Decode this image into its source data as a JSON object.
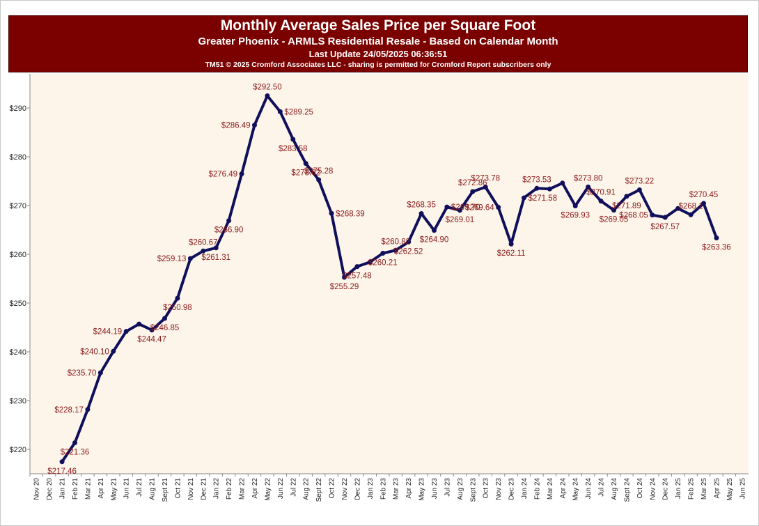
{
  "header": {
    "title": "Monthly Average Sales Price per Square Foot",
    "subtitle": "Greater Phoenix - ARMLS Residential Resale - Based on Calendar Month",
    "update": "Last Update 24/05/2025 06:36:51",
    "copyright": "TM51 © 2025 Cromford Associates LLC - sharing is permitted for Cromford Report subscribers only"
  },
  "colors": {
    "header_bg": "#7b0000",
    "plot_bg": "#fdf5ea",
    "line": "#0f0f5c",
    "label": "#8b1a1a"
  },
  "chart_data": {
    "type": "line",
    "title": "Monthly Average Sales Price per Square Foot",
    "xlabel": "",
    "ylabel": "",
    "ylim": [
      215,
      297
    ],
    "yticks": [
      220,
      230,
      240,
      250,
      260,
      270,
      280,
      290
    ],
    "ytick_labels": [
      "$220",
      "$230",
      "$240",
      "$250",
      "$260",
      "$270",
      "$280",
      "$290"
    ],
    "grid": false,
    "categories": [
      "Nov 20",
      "Dec 20",
      "Jan 21",
      "Feb 21",
      "Mar 21",
      "Apr 21",
      "May 21",
      "Jun 21",
      "Jul 21",
      "Aug 21",
      "Sept 21",
      "Oct 21",
      "Nov 21",
      "Dec 21",
      "Jan 22",
      "Feb 22",
      "Mar 22",
      "Apr 22",
      "May 22",
      "Jun 22",
      "Jul 22",
      "Aug 22",
      "Sept 22",
      "Oct 22",
      "Nov 22",
      "Dec 22",
      "Jan 23",
      "Feb 23",
      "Mar 23",
      "Apr 23",
      "May 23",
      "Jun 23",
      "Jul 23",
      "Aug 23",
      "Sept 23",
      "Oct 23",
      "Nov 23",
      "Dec 23",
      "Jan 24",
      "Feb 24",
      "Mar 24",
      "Apr 24",
      "May 24",
      "Jun 24",
      "Jul 24",
      "Aug 24",
      "Sept 24",
      "Oct 24",
      "Nov 24",
      "Dec 24",
      "Jan 25",
      "Feb 25",
      "Mar 25",
      "Apr 25",
      "May 25",
      "Jun 25"
    ],
    "values": [
      null,
      null,
      217.46,
      221.36,
      228.17,
      235.7,
      240.1,
      244.19,
      245.7,
      244.47,
      246.85,
      250.98,
      259.13,
      260.67,
      261.31,
      266.9,
      276.49,
      286.49,
      292.5,
      289.25,
      283.58,
      278.62,
      275.28,
      268.39,
      255.29,
      257.48,
      258.4,
      260.21,
      260.82,
      262.52,
      268.35,
      264.9,
      269.7,
      269.01,
      272.86,
      273.78,
      269.64,
      262.11,
      271.58,
      273.53,
      273.4,
      274.6,
      269.93,
      273.8,
      270.91,
      269.05,
      271.89,
      273.22,
      268.05,
      267.57,
      269.4,
      268.1,
      270.45,
      263.36,
      null,
      null
    ],
    "labels": [
      {
        "i": 2,
        "text": "$217.46",
        "pos": "below"
      },
      {
        "i": 3,
        "text": "$221.36",
        "pos": "below"
      },
      {
        "i": 4,
        "text": "$228.17",
        "pos": "left"
      },
      {
        "i": 5,
        "text": "$235.70",
        "pos": "left"
      },
      {
        "i": 6,
        "text": "$240.10",
        "pos": "left"
      },
      {
        "i": 7,
        "text": "$244.19",
        "pos": "left"
      },
      {
        "i": 9,
        "text": "$244.47",
        "pos": "below"
      },
      {
        "i": 10,
        "text": "$246.85",
        "pos": "below"
      },
      {
        "i": 11,
        "text": "$250.98",
        "pos": "below"
      },
      {
        "i": 12,
        "text": "$259.13",
        "pos": "left"
      },
      {
        "i": 13,
        "text": "$260.67",
        "pos": "above"
      },
      {
        "i": 14,
        "text": "$261.31",
        "pos": "below"
      },
      {
        "i": 15,
        "text": "$266.90",
        "pos": "below"
      },
      {
        "i": 16,
        "text": "$276.49",
        "pos": "left"
      },
      {
        "i": 17,
        "text": "$286.49",
        "pos": "left"
      },
      {
        "i": 18,
        "text": "$292.50",
        "pos": "above"
      },
      {
        "i": 19,
        "text": "$289.25",
        "pos": "right"
      },
      {
        "i": 20,
        "text": "$283.58",
        "pos": "below"
      },
      {
        "i": 21,
        "text": "$278.62",
        "pos": "below"
      },
      {
        "i": 22,
        "text": "$275.28",
        "pos": "above"
      },
      {
        "i": 23,
        "text": "$268.39",
        "pos": "right"
      },
      {
        "i": 24,
        "text": "$255.29",
        "pos": "below"
      },
      {
        "i": 25,
        "text": "$257.48",
        "pos": "below"
      },
      {
        "i": 27,
        "text": "$260.21",
        "pos": "below"
      },
      {
        "i": 28,
        "text": "$260.82",
        "pos": "above"
      },
      {
        "i": 29,
        "text": "$262.52",
        "pos": "below"
      },
      {
        "i": 30,
        "text": "$268.35",
        "pos": "above"
      },
      {
        "i": 31,
        "text": "$264.90",
        "pos": "below"
      },
      {
        "i": 32,
        "text": "$269.70",
        "pos": "right"
      },
      {
        "i": 33,
        "text": "$269.01",
        "pos": "below"
      },
      {
        "i": 34,
        "text": "$272.86",
        "pos": "above"
      },
      {
        "i": 35,
        "text": "$273.78",
        "pos": "above"
      },
      {
        "i": 36,
        "text": "$269.64",
        "pos": "left"
      },
      {
        "i": 37,
        "text": "$262.11",
        "pos": "below"
      },
      {
        "i": 38,
        "text": "$271.58",
        "pos": "right"
      },
      {
        "i": 39,
        "text": "$273.53",
        "pos": "above"
      },
      {
        "i": 42,
        "text": "$269.93",
        "pos": "below"
      },
      {
        "i": 43,
        "text": "$273.80",
        "pos": "above"
      },
      {
        "i": 44,
        "text": "$270.91",
        "pos": "above"
      },
      {
        "i": 45,
        "text": "$269.05",
        "pos": "below"
      },
      {
        "i": 46,
        "text": "$271.89",
        "pos": "below"
      },
      {
        "i": 47,
        "text": "$273.22",
        "pos": "above"
      },
      {
        "i": 48,
        "text": "$268.05",
        "pos": "left"
      },
      {
        "i": 49,
        "text": "$267.57",
        "pos": "below"
      },
      {
        "i": 51,
        "text": "$268.1",
        "pos": "above"
      },
      {
        "i": 52,
        "text": "$270.45",
        "pos": "above"
      },
      {
        "i": 53,
        "text": "$263.36",
        "pos": "below"
      }
    ]
  }
}
